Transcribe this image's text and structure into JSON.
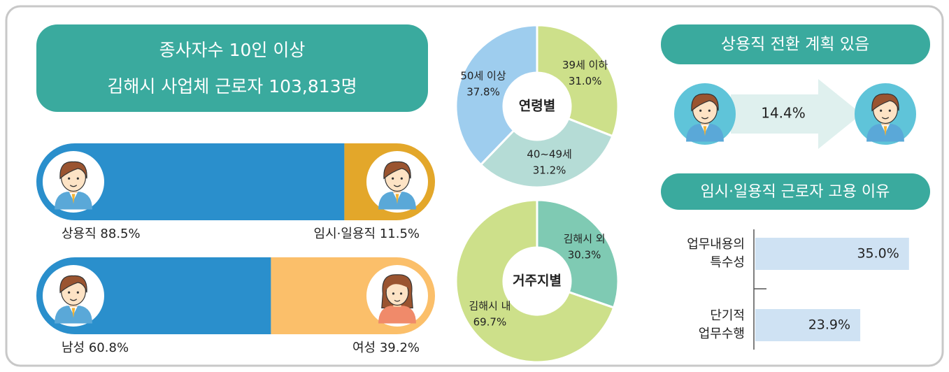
{
  "header": {
    "line1": "종사자수 10인 이상",
    "line2": "김해시 사업체 근로자 103,813명"
  },
  "chart_data": [
    {
      "type": "stacked",
      "xlim": [
        0,
        100
      ],
      "series": [
        {
          "name": "상용직",
          "color": "#2a8fcc",
          "values": [
            88.5
          ],
          "value_labels": [
            "88.5%"
          ]
        },
        {
          "name": "임시·일용직",
          "color": "#e3a72a",
          "values": [
            11.5
          ],
          "value_labels": [
            "11.5%"
          ]
        }
      ]
    },
    {
      "type": "stacked",
      "xlim": [
        0,
        100
      ],
      "series": [
        {
          "name": "남성",
          "color": "#2a8fcc",
          "values": [
            60.8
          ],
          "value_labels": [
            "60.8%"
          ]
        },
        {
          "name": "여성",
          "color": "#fbbf6a",
          "values": [
            39.2
          ],
          "value_labels": [
            "39.2%"
          ]
        }
      ]
    },
    {
      "type": "donut",
      "center_label": "연령별",
      "categories": [
        "39세 이하",
        "40~49세",
        "50세 이상"
      ],
      "values": [
        31.0,
        31.2,
        37.8
      ],
      "value_labels": [
        "31.0%",
        "31.2%",
        "37.8%"
      ],
      "colors": [
        "#cde08a",
        "#b5dcd6",
        "#9ecdee"
      ]
    },
    {
      "type": "donut",
      "center_label": "거주지별",
      "categories": [
        "김해시 외",
        "김해시 내"
      ],
      "values": [
        30.3,
        69.7
      ],
      "value_labels": [
        "30.3%",
        "69.7%"
      ],
      "colors": [
        "#7fcab3",
        "#cde08a"
      ]
    },
    {
      "type": "arrow",
      "title": "상용직 전환 계획 있음",
      "values": [
        14.4
      ],
      "value_labels": [
        "14.4%"
      ],
      "color": "#dff0ee"
    },
    {
      "type": "hbar",
      "title": "임시·일용직 근로자 고용 이유",
      "categories": [
        "업무내용의\n특수성",
        "단기적\n업무수행"
      ],
      "values": [
        35.0,
        23.9
      ],
      "value_labels": [
        "35.0%",
        "23.9%"
      ],
      "color": "#cfe2f3"
    }
  ]
}
